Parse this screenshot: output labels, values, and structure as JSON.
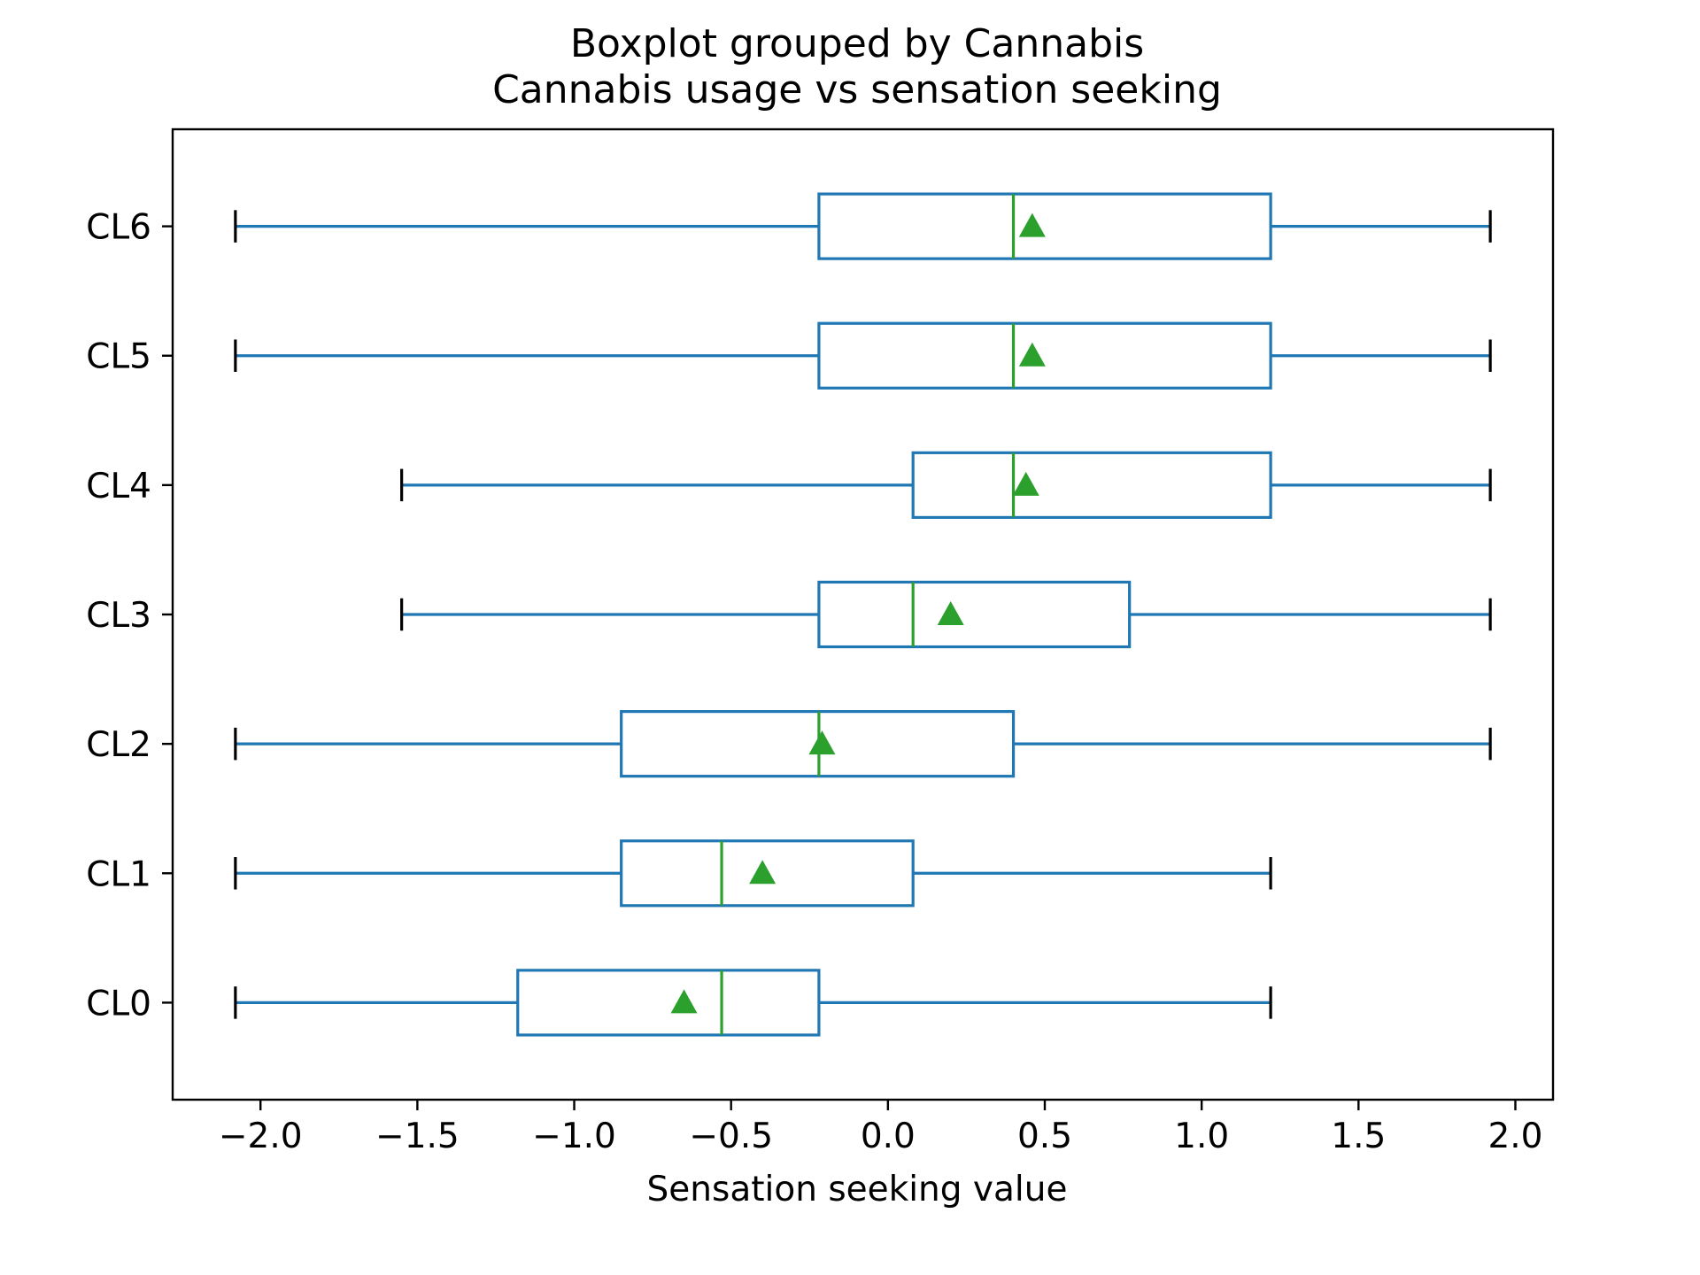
{
  "chart_data": {
    "type": "boxplot",
    "title": "Boxplot grouped by Cannabis",
    "subtitle": "Cannabis usage vs sensation seeking",
    "xlabel": "Sensation seeking value",
    "ylabel": "",
    "xlim": [
      -2.28,
      2.12
    ],
    "xticks": [
      -2.0,
      -1.5,
      -1.0,
      -0.5,
      0.0,
      0.5,
      1.0,
      1.5,
      2.0
    ],
    "xtick_labels": [
      "−2.0",
      "−1.5",
      "−1.0",
      "−0.5",
      "0.0",
      "0.5",
      "1.0",
      "1.5",
      "2.0"
    ],
    "categories": [
      "CL0",
      "CL1",
      "CL2",
      "CL3",
      "CL4",
      "CL5",
      "CL6"
    ],
    "orientation": "horizontal",
    "grid": false,
    "series": [
      {
        "category": "CL0",
        "whisker_low": -2.08,
        "q1": -1.18,
        "median": -0.53,
        "q3": -0.22,
        "whisker_high": 1.22,
        "mean": -0.65
      },
      {
        "category": "CL1",
        "whisker_low": -2.08,
        "q1": -0.85,
        "median": -0.53,
        "q3": 0.08,
        "whisker_high": 1.22,
        "mean": -0.4
      },
      {
        "category": "CL2",
        "whisker_low": -2.08,
        "q1": -0.85,
        "median": -0.22,
        "q3": 0.4,
        "whisker_high": 1.92,
        "mean": -0.21
      },
      {
        "category": "CL3",
        "whisker_low": -1.55,
        "q1": -0.22,
        "median": 0.08,
        "q3": 0.77,
        "whisker_high": 1.92,
        "mean": 0.2
      },
      {
        "category": "CL4",
        "whisker_low": -1.55,
        "q1": 0.08,
        "median": 0.4,
        "q3": 1.22,
        "whisker_high": 1.92,
        "mean": 0.44
      },
      {
        "category": "CL5",
        "whisker_low": -2.08,
        "q1": -0.22,
        "median": 0.4,
        "q3": 1.22,
        "whisker_high": 1.92,
        "mean": 0.46
      },
      {
        "category": "CL6",
        "whisker_low": -2.08,
        "q1": -0.22,
        "median": 0.4,
        "q3": 1.22,
        "whisker_high": 1.92,
        "mean": 0.46
      }
    ],
    "colors": {
      "box": "#1f77b4",
      "median": "#2ca02c",
      "mean_marker": "#2ca02c",
      "whisker_cap": "#000000",
      "axes": "#000000"
    }
  }
}
